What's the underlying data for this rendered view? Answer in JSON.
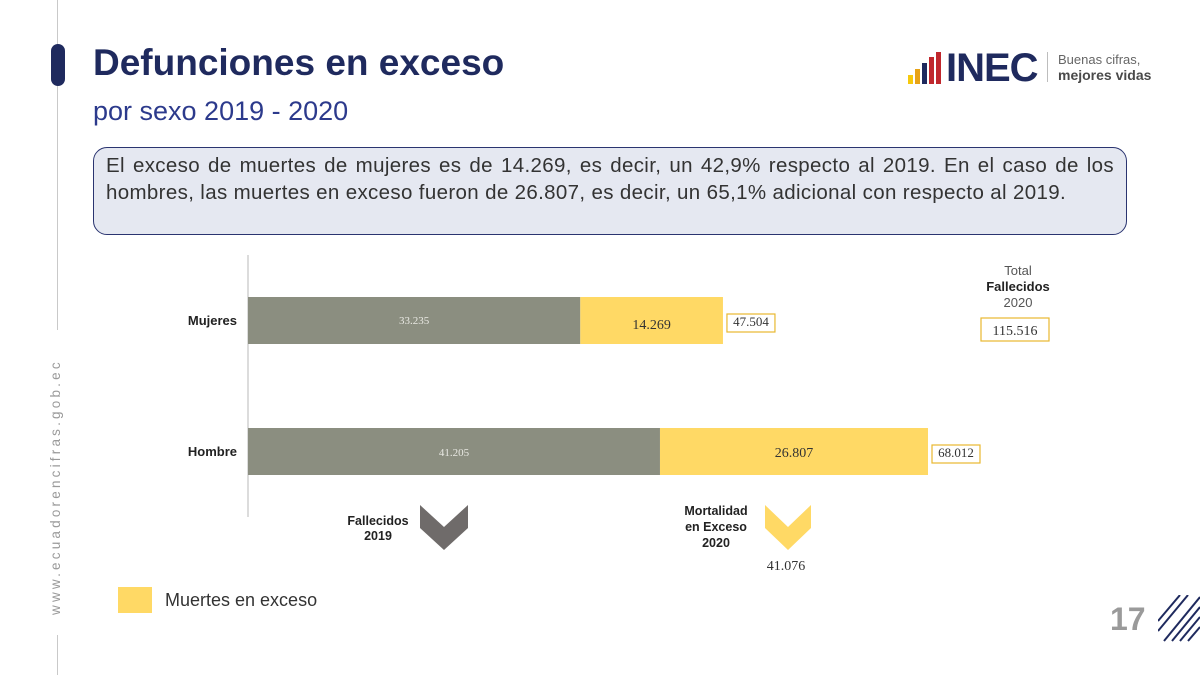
{
  "header": {
    "title": "Defunciones en exceso",
    "subtitle": "por sexo 2019 - 2020"
  },
  "logo": {
    "name": "INEC",
    "tagline_line1": "Buenas cifras,",
    "tagline_line2": "mejores vidas",
    "bar_colors": [
      "#f6c90e",
      "#e8a317",
      "#1f2a5e",
      "#c0272d"
    ]
  },
  "sidebar": {
    "url": "www.ecuadorencifras.gob.ec"
  },
  "callout": {
    "text": "El exceso de muertes de mujeres es de 14.269, es decir, un 42,9% respecto al 2019. En el caso de los hombres, las muertes en exceso fueron de 26.807, es decir, un 65,1% adicional con respecto al 2019."
  },
  "chart_data": {
    "type": "bar",
    "orientation": "horizontal",
    "stacked": true,
    "categories": [
      "Mujeres",
      "Hombre"
    ],
    "series": [
      {
        "values": [
          33235,
          41205
        ],
        "labels": [
          "33.235",
          "41.205"
        ],
        "color": "#8b8e80"
      },
      {
        "name": "Muertes en exceso",
        "values": [
          14269,
          26807
        ],
        "labels": [
          "14.269",
          "26.807"
        ],
        "color": "#ffd965"
      }
    ],
    "totals": {
      "values": [
        47504,
        68012
      ],
      "labels": [
        "47.504",
        "68.012"
      ]
    },
    "total_box": {
      "line1": "Total",
      "line2": "Fallecidos",
      "line3": "2020",
      "value": "115.516"
    },
    "annotations": {
      "fallecidos_2019": {
        "line1": "Fallecidos",
        "line2": "2019",
        "color": "#6f6b6a"
      },
      "mortalidad_exceso": {
        "line1": "Mortalidad",
        "line2": "en Exceso",
        "line3": "2020",
        "value": "41.076",
        "color": "#ffd965"
      }
    },
    "legend": {
      "label": "Muertes en exceso",
      "position": "bottom-left"
    },
    "accent_color": "#ffd965",
    "base_color": "#8b8e80"
  },
  "footer": {
    "page_number": "17"
  }
}
